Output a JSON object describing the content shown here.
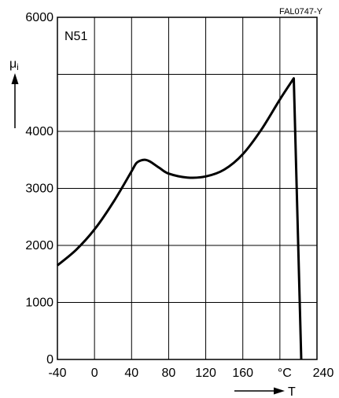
{
  "figure_code": "FAL0747-Y",
  "chart_data": {
    "type": "line",
    "title": "N51",
    "ylabel": "μi",
    "ylabel_main": "μ",
    "ylabel_sub": "i",
    "xlabel": "T",
    "xunit": "°C",
    "xlim": [
      -40,
      240
    ],
    "ylim": [
      0,
      6000
    ],
    "grid": true,
    "x_tick_labels": [
      "-40",
      "0",
      "40",
      "80",
      "120",
      "160",
      "°C",
      "240"
    ],
    "y_tick_labels": [
      "0",
      "1000",
      "2000",
      "3000",
      "4000",
      "6000"
    ],
    "y_tick_values": [
      0,
      1000,
      2000,
      3000,
      4000,
      6000
    ],
    "x_tick_values": [
      -40,
      0,
      40,
      80,
      120,
      160,
      200,
      240
    ],
    "series": [
      {
        "x": [
          -40,
          -20,
          0,
          20,
          40,
          45,
          50,
          55,
          60,
          70,
          80,
          100,
          120,
          140,
          160,
          180,
          200,
          215,
          223
        ],
        "y": [
          1650,
          1920,
          2280,
          2750,
          3300,
          3440,
          3490,
          3500,
          3470,
          3360,
          3260,
          3190,
          3210,
          3330,
          3600,
          4030,
          4560,
          4930,
          0
        ]
      }
    ]
  },
  "colors": {
    "line": "#000000",
    "grid": "#000000",
    "background": "#ffffff"
  }
}
